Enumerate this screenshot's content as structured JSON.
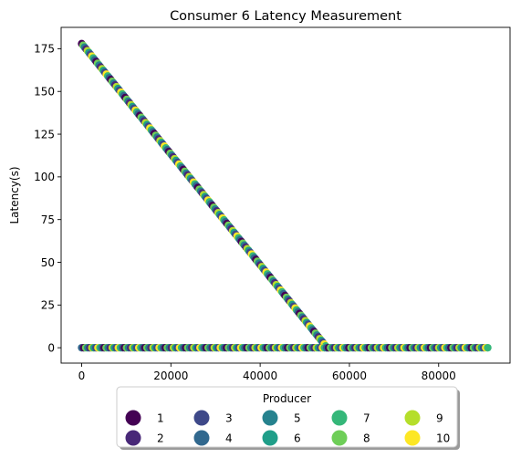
{
  "chart_data": {
    "type": "scatter",
    "title": "Consumer 6 Latency Measurement",
    "xlabel": "",
    "ylabel": "Latency(s)",
    "xlim": [
      -4600,
      96000
    ],
    "ylim": [
      -9,
      187.5
    ],
    "xticks": [
      0,
      20000,
      40000,
      60000,
      80000
    ],
    "xtick_labels": [
      "0",
      "20000",
      "40000",
      "60000",
      "80000"
    ],
    "yticks": [
      0,
      25,
      50,
      75,
      100,
      125,
      150,
      175
    ],
    "ytick_labels": [
      "0",
      "25",
      "50",
      "75",
      "100",
      "125",
      "150",
      "175"
    ],
    "grid": false,
    "segments": [
      {
        "name": "decreasing",
        "x": [
          0,
          55000
        ],
        "y": [
          178,
          0
        ],
        "points": 170
      },
      {
        "name": "baseline",
        "x": [
          0,
          91000
        ],
        "y": [
          0,
          0
        ],
        "points": 200
      }
    ],
    "legend": {
      "title": "Producer",
      "placement": "bottom-center",
      "columns": 5,
      "entries": [
        {
          "label": "1",
          "color": "#440154"
        },
        {
          "label": "2",
          "color": "#482878"
        },
        {
          "label": "3",
          "color": "#3e4989"
        },
        {
          "label": "4",
          "color": "#31688e"
        },
        {
          "label": "5",
          "color": "#26828e"
        },
        {
          "label": "6",
          "color": "#1f9e89"
        },
        {
          "label": "7",
          "color": "#35b779"
        },
        {
          "label": "8",
          "color": "#6ece58"
        },
        {
          "label": "9",
          "color": "#b5de2b"
        },
        {
          "label": "10",
          "color": "#fde725"
        }
      ]
    }
  }
}
